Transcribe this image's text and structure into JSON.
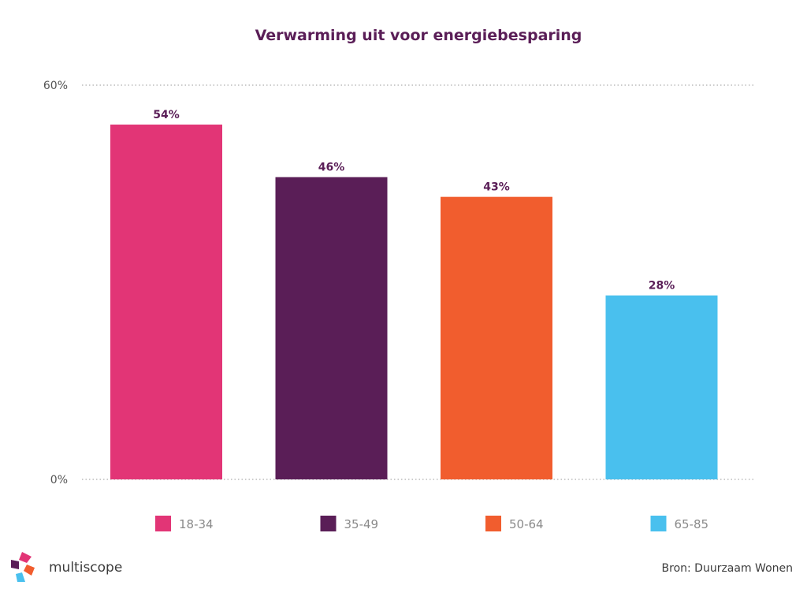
{
  "chart_data": {
    "type": "bar",
    "title": "Verwarming uit voor energiebesparing",
    "categories": [
      "18-34",
      "35-49",
      "50-64",
      "65-85"
    ],
    "values": [
      54,
      46,
      43,
      28
    ],
    "value_labels": [
      "54%",
      "46%",
      "43%",
      "28%"
    ],
    "colors": [
      "#e23576",
      "#5a1e57",
      "#f15d2e",
      "#49c0ee"
    ],
    "ylim": [
      0,
      60
    ],
    "y_ticks": [
      {
        "value": 60,
        "label": "60%"
      },
      {
        "value": 0,
        "label": "0%"
      }
    ],
    "grid": true,
    "legend": "bottom"
  },
  "footer": {
    "source": "Bron: Duurzaam Wonen",
    "brand": "multiscope"
  },
  "brand_colors": [
    "#e23576",
    "#f15d2e",
    "#49c0ee",
    "#5a1e57"
  ]
}
